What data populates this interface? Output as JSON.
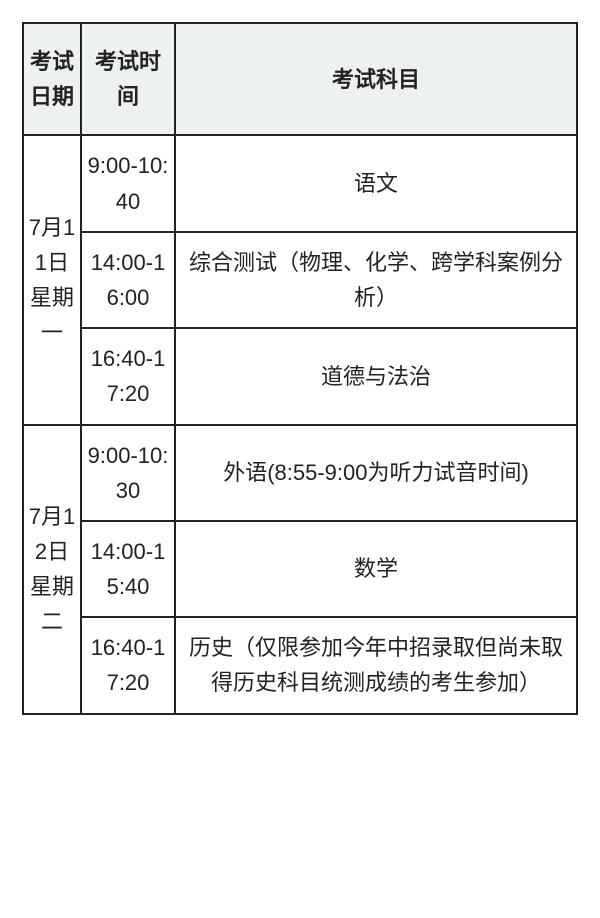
{
  "headers": {
    "date": "考试日期",
    "time": "考试时间",
    "subject": "考试科目"
  },
  "days": [
    {
      "date": "7月11日星期一",
      "rows": [
        {
          "time": "9:00-10:40",
          "subject": "语文"
        },
        {
          "time": "14:00-16:00",
          "subject": "综合测试（物理、化学、跨学科案例分析）"
        },
        {
          "time": "16:40-17:20",
          "subject": "道德与法治"
        }
      ]
    },
    {
      "date": "7月12日星期二",
      "rows": [
        {
          "time": "9:00-10:30",
          "subject": "外语(8:55-9:00为听力试音时间)"
        },
        {
          "time": "14:00-15:40",
          "subject": "数学"
        },
        {
          "time": "16:40-17:20",
          "subject": "历史（仅限参加今年中招录取但尚未取得历史科目统测成绩的考生参加）"
        }
      ]
    }
  ]
}
